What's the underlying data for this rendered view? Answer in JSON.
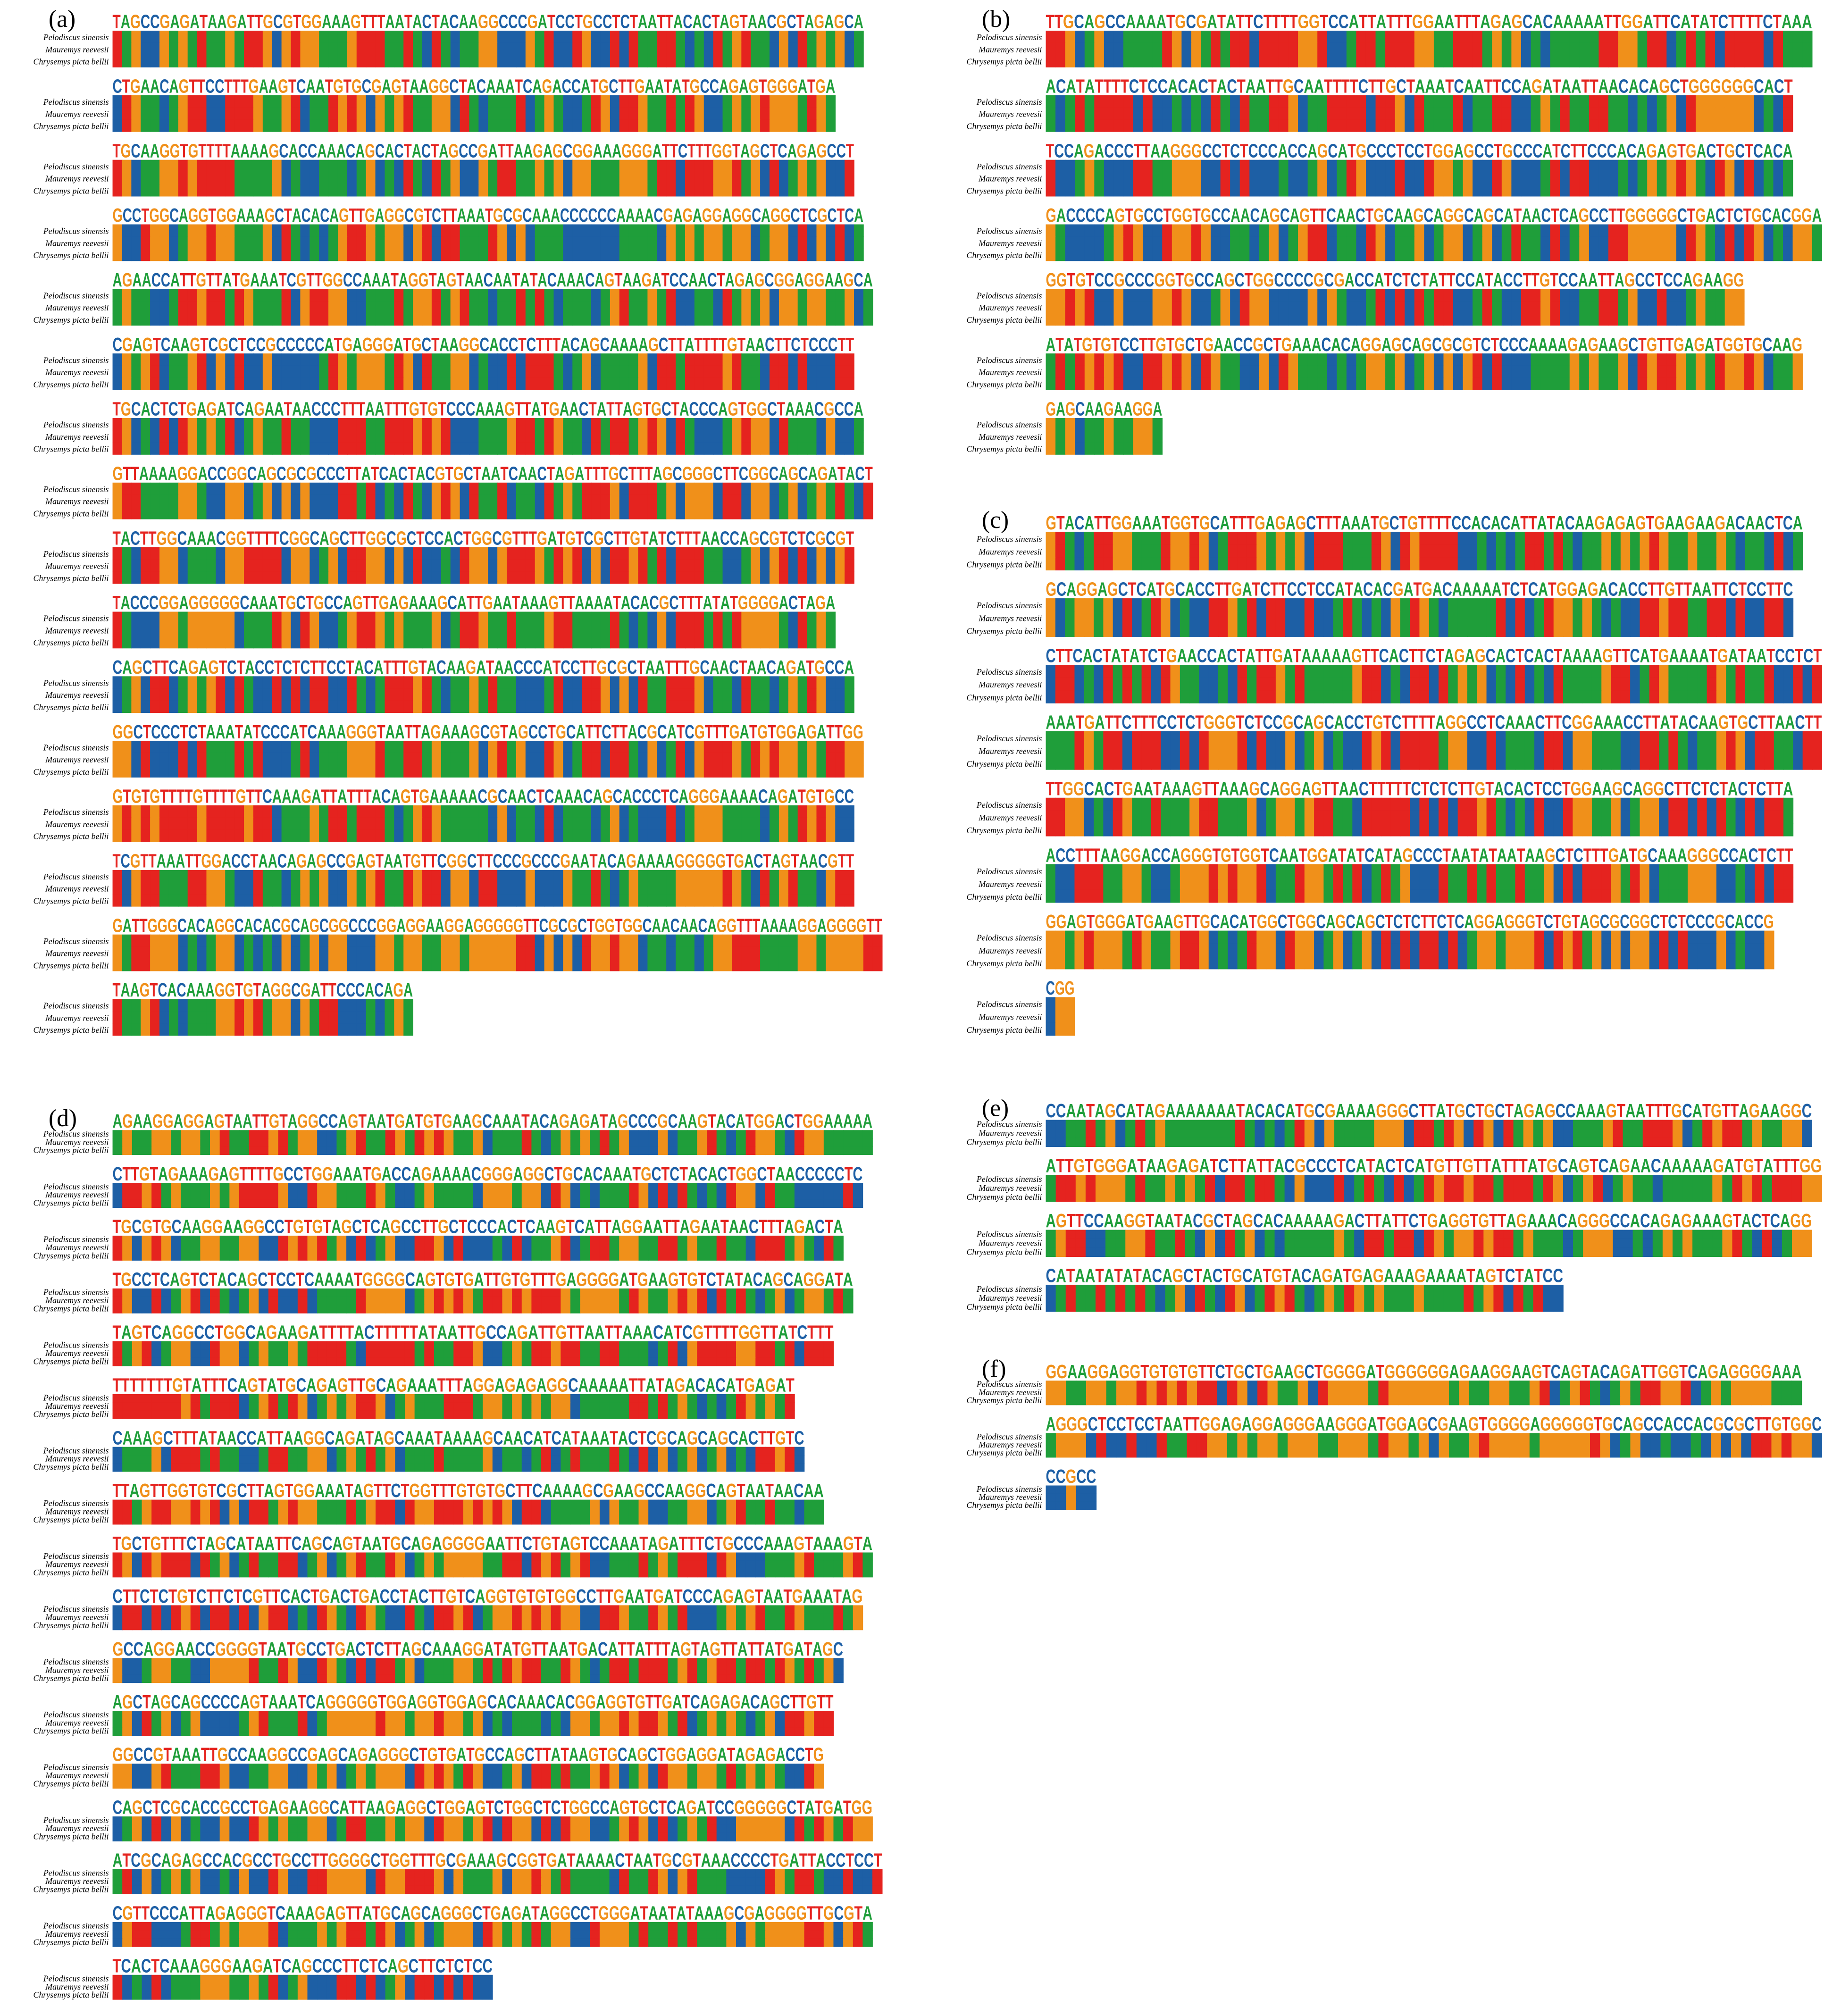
{
  "species": [
    "Pelodiscus sinensis",
    "Mauremys reevesii",
    "Chrysemys picta bellii"
  ],
  "panels": [
    {
      "label": "(a)",
      "rows": [
        "TAGCCGAGATAAGATTGCGTGGAAAGTTTAATACTACAAGGCCCGATCCTGCCTCTAATTACACTAGTAACGCTAGAGCA",
        "CTGAACAGTTCCTTTGAAGTCAATGTGCGAGTAAGGCTACAAATCAGACCATGCTTGAATATGCCAGAGTGGGATGA",
        "TGCAAGGTGTTTTAAAAGCACCAAACAGCACTACTAGCCGATTAAGAGCGGAAAGGGATTCTTTGGTAGCTCAGAGCCT",
        "GCCTGGCAGGTGGAAAGCTACACAGTTGAGGCGTCTTAAATGCGCAAACCCCCCAAAACGAGAGGAGGCAGGCTCGCTCA",
        "AGAACCATTGTTATGAAATCGTTGGCCAAATAGGTAGTAACAATATACAAACAGTAAGATCCAACTAGAGCGGAGGAAGCA",
        "CGAGTCAAGTCGCTCCGCCCCCATGAGGGATGCTAAGGCACCTCTTTACAGCAAAAGCTTATTTTGTAACTTCTCCCTT",
        "TGCACTCTGAGATCAGAATAACCCTTTAATTTGTGTCCCAAAGTTATGAACTATTAGTGCTACCCAGTGGCTAAACGCCA",
        "GTTAAAAGGACCGGCAGCGCGCCCTTATCACTACGTGCTAATCAACTAGATTTGCTTTAGCGGGCTTCGGCAGCAGATACT",
        "TACTTGGCAAACGGTTTTCGGCAGCTTGGCGCTCCACTGGCGTTTGATGTCGCTTGTATCTTTAACCAGCGTCTCGCGT",
        "TACCCGGAGGGGGCAAATGCTGCCAGTTGAGAAAGCATTGAATAAAGTTAAAATACACGCTTTATATGGGGACTAGA",
        "CAGCTTCAGAGTCTACCTCTCTTCCTACATTTGTACAAGATAACCCATCCTTGCGCTAATTTGCAACTAACAGATGCCA",
        "GGCTCCCTCTAAATATCCCATCAAAGGGTAATTAGAAAGCGTAGCCTGCATTCTTACGCATCGTTTGATGTGGAGATTGG",
        "GTGTGTTTTGTTTTGTTCAAAGATTATTTACAGTGAAAAACGCAACTCAAACAGCACCCTCAGGGAAAACAGATGTGCC",
        "TCGTTAAATTGGACCTAACAGAGCCGAGTAATGTTCGGCTTCCCGCCCGAATACAGAAAAGGGGGTGACTAGTAACGTT",
        "GATTGGGCACAGGCACACGCAGCGGCCCGGAGGAAGGAGGGGGTTCGCGCTGGTGGCAACAACAGGTTTAAAAGGAGGGGTT",
        "TAAGTCACAAAGGTGTAGGCGATTCCCACAGA"
      ]
    },
    {
      "label": "(b)",
      "rows": [
        "TTGCAGCCAAAATGCGATATTCTTTTGGTCCATTATTTGGAATTTAGAGCACAAAAATTGGATTCATATCTTTTCTAAA",
        "ACATATTTTCTCCACACTACTAATTGCAATTTTCTTGCTAAATCAATTCCAGATAATTAACACAGCTGGGGGGCACT",
        "TCCAGACCCTTAAGGGCCTCTCCCACCAGCATGCCCTCCTGGAGCCTGCCCATCTTCCCACAGAGTGACTGCTCACA",
        "GACCCCAGTGCCTGGTGCCAACAGCAGTTCAACTGCAAGCAGGCAGCATAACTCAGCCTTGGGGGCTGACTCTGCACGGA",
        "GGTGTCCGCCCGGTGCCAGCTGGCCCCGCGACCATCTCTATTCCATACCTTGTCCAATTAGCCTCCAGAAGG",
        "ATATGTGTCCTTGTGCTGAACCGCTGAAACACAGGAGCAGCGCGTCTCCCAAAAGAGAAGCTGTTGAGATGGTGCAAG",
        "GAGCAAGAAGGA"
      ]
    },
    {
      "label": "(c)",
      "rows": [
        "GTACATTGGAAATGGTGCATTTGAGAGCTTTAAATGCTGTTTTCCACACATTATACAAGAGAGTGAAGAAGACAACTCA",
        "GCAGGAGCTCATGCACCTTGATCTTCCTCCATACACGATGACAAAAATCTCATGGAGACACCTTGTTAATTCTCCTTC",
        "CTTCACTATATCTGAACCACTATTGATAAAAAGTTCACTTCTAGAGCACTCACTAAAAGTTCATGAAAATGATAATCCTCT",
        "AAATGATTCTTTCCTCTGGGTCTCCGCAGCACCTGTCTTTTAGGCCTCAAACTTCGGAAACCTTATACAAGTGCTTAACTT",
        "TTGGCACTGAATAAAGTTAAAGCAGGAGTTAACTTTTTCTCTCTTGTACACTCCTGGAAGCAGGCTTCTCTACTCTTA",
        "ACCTTTAAGGACCAGGGTGTGGTCAATGGATATCATAGCCCTAATATAATAAGCTCTTTGATGCAAAGGGCCACTCTT",
        "GGAGTGGGATGAAGTTGCACATGGCTGGCAGCAGCTCTCTTCTCAGGAGGGTCTGTAGCGCGGCTCTCCCGCACCG",
        "CGG"
      ]
    },
    {
      "label": "(d)",
      "rows": [
        "AGAAGGAGGAGTAATTGTAGGCCAGTAATGATGTGAAGCAAATACAGAGATAGCCCGCAAGTACATGGACTGGAAAAA",
        "CTTGTAGAAAGAGTTTTGCCTGGAAATGACCAGAAAACGGGAGGCTGCACAAATGCTCTACACTGGCTAACCCCCTC",
        "TGCGTGCAAGGAAGGCCTGTGTAGCTCAGCCTTGCTCCCACTCAAGTCATTAGGAATTAGAATAACTTTAGACTA",
        "TGCCTCAGTCTACAGCTCCTCAAAATGGGGCAGTGTGATTGTGTTTGAGGGGATGAAGTGTCTATACAGCAGGATA",
        "TAGTCAGGCCTGGCAGAAGATTTTACTTTTTATAATTGCCAGATTGTTAATTAAACATCGTTTTGGTTATCTTT",
        "TTTTTTTGTATTTCAGTATGCAGAGTTGCAGAAATTTAGGAGAGAGGCAAAAATTATAGACACATGAGAT",
        "CAAAGCTTTATAACCATTAAGGCAGATAGCAAATAAAAGCAACATCATAAATACTCGCAGCAGCACTTGTC",
        "TTAGTTGGTGTCGCTTAGTGGAAATAGTTCTGGTTTGTGTGCTTCAAAAGCGAAGCCAAGGCAGTAATAACAA",
        "TGCTGTTTCTAGCATAATTCAGCAGTAATGCAGAGGGGAATTCTGTAGTCCAAATAGATTTCTGCCCAAAGTAAAGTA",
        "CTTCTCTGTCTTCTCGTTCACTGACTGACCTACTTGTCAGGTGTGTGGCCTTGAATGATCCCAGAGTAATGAAATAG",
        "GCCAGGAACCGGGGTAATGCCTGACTCTTAGCAAAGGATATGTTAATGACATTATTTAGTAGTTATTATGATAGC",
        "AGCTAGCAGCCCCAGTAAATCAGGGGGTGGAGGTGGAGCACAAACACGGAGGTGTTGATCAGAGACAGCTTGTT",
        "GGCCGTAAATTGCCAAGGCCGAGCAGAGGGCTGTGATGCCAGCTTATAAGTGCAGCTGGAGGATAGAGACCTG",
        "CAGCTCGCACCGCCTGAGAAGGCATTAAGAGGCTGGAGTCTGGCTCTGGCCAGTGCTCAGATCCGGGGGCTATGATGG",
        "ATCGCAGAGCCACGCCTGCCTTGGGGCTGGTTTGCGAAAGCGGTGATAAAACTAATGCGTAAACCCCTGATTACCTCCT",
        "CGTTCCCATTAGAGGGTCAAAGAGTTATGCAGCAGGGCTGAGATAGGCCTGGGATAATATAAAGCGAGGGGTTGCGTA",
        "TCACTCAAAGGGAAGATCAGCCCTTCTCAGCTTCTCTCC"
      ]
    },
    {
      "label": "(e)",
      "rows": [
        "CCAATAGCATAGAAAAAAATACACATGCGAAAAGGGCTTATGCTGCTAGAGCCAAAGTAATTTGCATGTTAGAAGGC",
        "ATTGTGGGATAAGAGATCTTATTACGCCCTCATACTCATGTTGTTATTTATGCAGTCAGAACAAAAAGATGTATTTGG",
        "AGTTCCAAGGTAATACGCTAGCACAAAAAGACTTATTCTGAGGTGTTAGAAACAGGGCCACAGAGAAAGTACTCAGG",
        "CATAATATATACAGCTACTGCATGTACAGATGAGAAAGAAAATAGTCTATCC"
      ]
    },
    {
      "label": "(f)",
      "rows": [
        "GGAAGGAGGTGTGTGTTCTGCTGAAGCTGGGGATGGGGGGAGAAGGAAGTCAGTACAGATTGGTCAGAGGGGAAA",
        "AGGGCTCCTCCTAATTGGAGAGGAGGGAAGGGATGGAGCGAAGTGGGGAGGGGGTGCAGCCACCACGCGCTTGTGGC",
        "CCGCC"
      ]
    }
  ]
}
